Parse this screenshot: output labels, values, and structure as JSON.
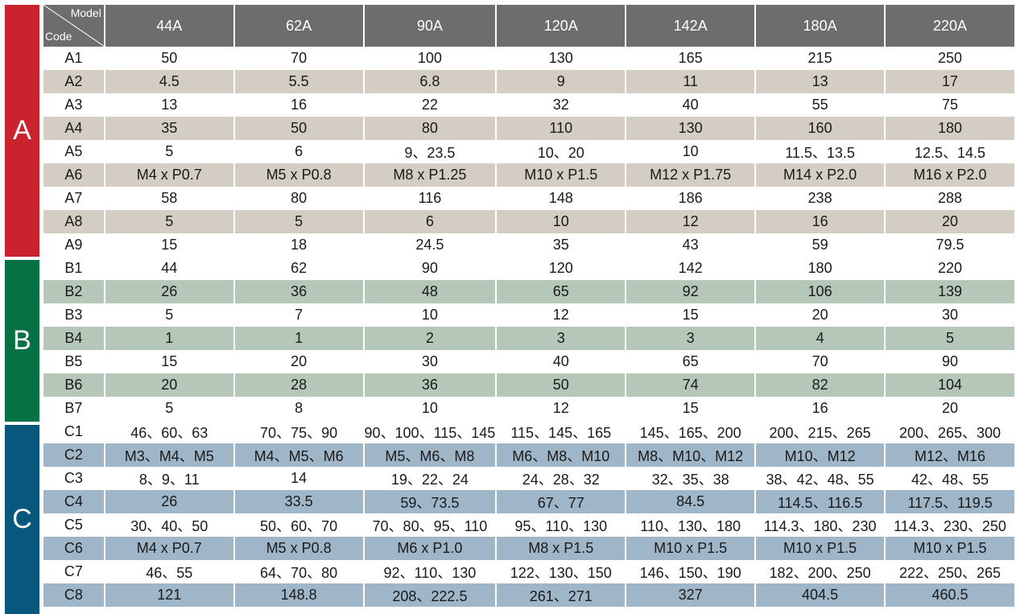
{
  "colors": {
    "header_bg": "#6c6d6e",
    "group_A": "#c9232e",
    "group_B": "#077146",
    "group_C": "#08587d",
    "stripe_A": "#d3cdc3",
    "stripe_B": "#b4c7b8",
    "stripe_C": "#9fb6c9"
  },
  "header": {
    "model_label": "Model",
    "code_label": "Code",
    "models": [
      "44A",
      "62A",
      "90A",
      "120A",
      "142A",
      "180A",
      "220A"
    ]
  },
  "groups": [
    {
      "label": "A",
      "rows": [
        {
          "code": "A1",
          "values": [
            "50",
            "70",
            "100",
            "130",
            "165",
            "215",
            "250"
          ]
        },
        {
          "code": "A2",
          "values": [
            "4.5",
            "5.5",
            "6.8",
            "9",
            "11",
            "13",
            "17"
          ]
        },
        {
          "code": "A3",
          "values": [
            "13",
            "16",
            "22",
            "32",
            "40",
            "55",
            "75"
          ]
        },
        {
          "code": "A4",
          "values": [
            "35",
            "50",
            "80",
            "110",
            "130",
            "160",
            "180"
          ]
        },
        {
          "code": "A5",
          "values": [
            "5",
            "6",
            "9、23.5",
            "10、20",
            "10",
            "11.5、13.5",
            "12.5、14.5"
          ]
        },
        {
          "code": "A6",
          "values": [
            "M4 x P0.7",
            "M5 x P0.8",
            "M8 x P1.25",
            "M10 x P1.5",
            "M12 x P1.75",
            "M14 x P2.0",
            "M16 x P2.0"
          ]
        },
        {
          "code": "A7",
          "values": [
            "58",
            "80",
            "116",
            "148",
            "186",
            "238",
            "288"
          ]
        },
        {
          "code": "A8",
          "values": [
            "5",
            "5",
            "6",
            "10",
            "12",
            "16",
            "20"
          ]
        },
        {
          "code": "A9",
          "values": [
            "15",
            "18",
            "24.5",
            "35",
            "43",
            "59",
            "79.5"
          ]
        }
      ]
    },
    {
      "label": "B",
      "rows": [
        {
          "code": "B1",
          "values": [
            "44",
            "62",
            "90",
            "120",
            "142",
            "180",
            "220"
          ]
        },
        {
          "code": "B2",
          "values": [
            "26",
            "36",
            "48",
            "65",
            "92",
            "106",
            "139"
          ]
        },
        {
          "code": "B3",
          "values": [
            "5",
            "7",
            "10",
            "12",
            "15",
            "20",
            "30"
          ]
        },
        {
          "code": "B4",
          "values": [
            "1",
            "1",
            "2",
            "3",
            "3",
            "4",
            "5"
          ]
        },
        {
          "code": "B5",
          "values": [
            "15",
            "20",
            "30",
            "40",
            "65",
            "70",
            "90"
          ]
        },
        {
          "code": "B6",
          "values": [
            "20",
            "28",
            "36",
            "50",
            "74",
            "82",
            "104"
          ]
        },
        {
          "code": "B7",
          "values": [
            "5",
            "8",
            "10",
            "12",
            "15",
            "16",
            "20"
          ]
        }
      ]
    },
    {
      "label": "C",
      "rows": [
        {
          "code": "C1",
          "values": [
            "46、60、63",
            "70、75、90",
            "90、100、115、145",
            "115、145、165",
            "145、165、200",
            "200、215、265",
            "200、265、300"
          ]
        },
        {
          "code": "C2",
          "values": [
            "M3、M4、M5",
            "M4、M5、M6",
            "M5、M6、M8",
            "M6、M8、M10",
            "M8、M10、M12",
            "M10、M12",
            "M12、M16"
          ]
        },
        {
          "code": "C3",
          "values": [
            "8、9、11",
            "14",
            "19、22、24",
            "24、28、32",
            "32、35、38",
            "38、42、48、55",
            "42、48、55"
          ]
        },
        {
          "code": "C4",
          "values": [
            "26",
            "33.5",
            "59、73.5",
            "67、77",
            "84.5",
            "114.5、116.5",
            "117.5、119.5"
          ]
        },
        {
          "code": "C5",
          "values": [
            "30、40、50",
            "50、60、70",
            "70、80、95、110",
            "95、110、130",
            "110、130、180",
            "114.3、180、230",
            "114.3、230、250"
          ]
        },
        {
          "code": "C6",
          "values": [
            "M4 x P0.7",
            "M5 x P0.8",
            "M6 x P1.0",
            "M8 x P1.5",
            "M10 x P1.5",
            "M10 x P1.5",
            "M10 x P1.5"
          ]
        },
        {
          "code": "C7",
          "values": [
            "46、55",
            "64、70、80",
            "92、110、130",
            "122、130、150",
            "146、150、190",
            "182、200、250",
            "222、250、265"
          ]
        },
        {
          "code": "C8",
          "values": [
            "121",
            "148.8",
            "208、222.5",
            "261、271",
            "327",
            "404.5",
            "460.5"
          ]
        }
      ]
    }
  ]
}
